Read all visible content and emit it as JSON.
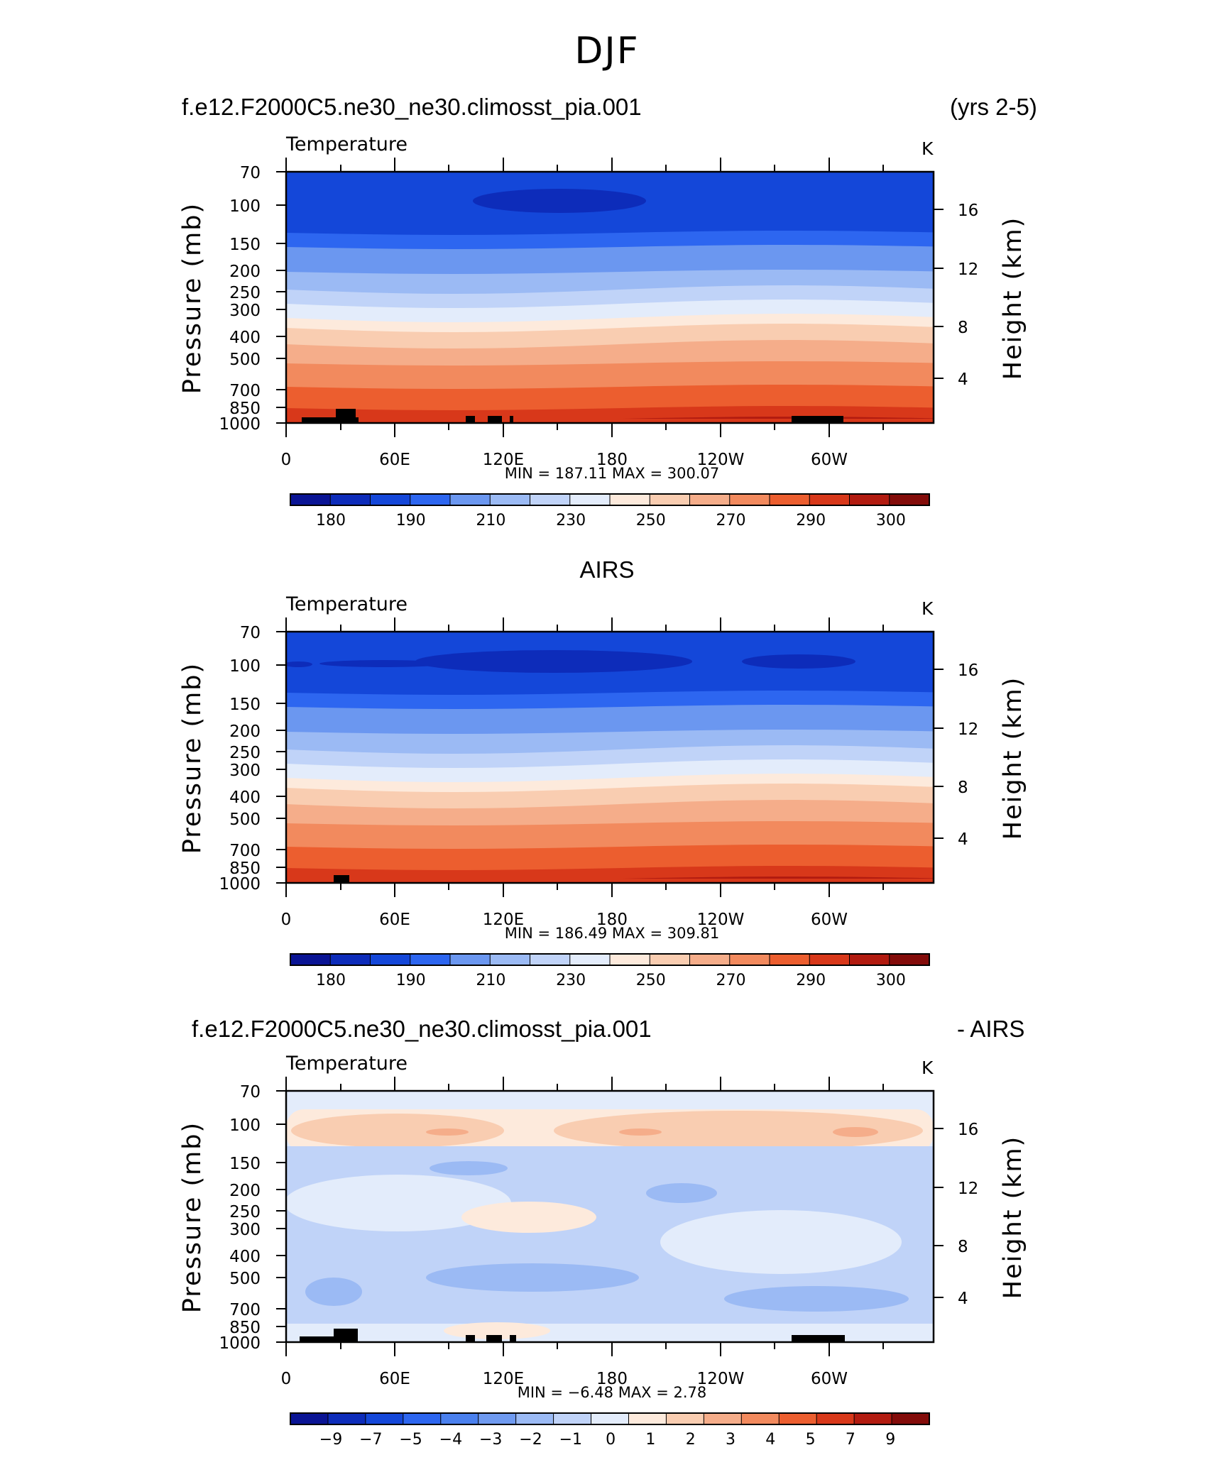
{
  "title": "DJF",
  "headers": {
    "p1_left": "f.e12.F2000C5.ne30_ne30.climosst_pia.001",
    "p1_right": "(yrs 2-5)",
    "p2_center": "AIRS",
    "p3_left": "f.e12.F2000C5.ne30_ne30.climosst_pia.001",
    "p3_right": "- AIRS"
  },
  "colors": {
    "temp_scale": [
      "#0a1494",
      "#0d2cba",
      "#1447d9",
      "#2d66f0",
      "#6b97f0",
      "#9bbaf4",
      "#c0d3f8",
      "#e3ecfb",
      "#fdeadc",
      "#f9cdb1",
      "#f5ad8a",
      "#f28a5e",
      "#ec5e2f",
      "#d8381a",
      "#b21b10",
      "#830c0a"
    ],
    "diff_scale": [
      "#0a1494",
      "#0d2cba",
      "#1447d9",
      "#2d66f0",
      "#4a80ee",
      "#6f9af0",
      "#9bbaf4",
      "#c0d3f8",
      "#e3ecfb",
      "#fdeadc",
      "#f9cdb1",
      "#f5ad8a",
      "#f28a5e",
      "#ec5e2f",
      "#d8381a",
      "#b21b10",
      "#830c0a"
    ]
  },
  "chart_data": [
    {
      "type": "heatmap",
      "subtitle_left": "Temperature",
      "units": "K",
      "ylabel": "Pressure (mb)",
      "ylabel_right": "Height (km)",
      "y_ticks": [
        "70",
        "100",
        "150",
        "200",
        "250",
        "300",
        "400",
        "500",
        "700",
        "850",
        "1000"
      ],
      "y_ticks_right": [
        "16",
        "12",
        "8",
        "4"
      ],
      "x_ticks": [
        "0",
        "60E",
        "120E",
        "180",
        "120W",
        "60W"
      ],
      "stats": "MIN = 187.11   MAX = 300.07",
      "colorbar_labels": [
        "180",
        "190",
        "210",
        "230",
        "250",
        "270",
        "290",
        "300"
      ],
      "profile_levels_mb": [
        70,
        100,
        150,
        200,
        250,
        300,
        400,
        500,
        700,
        850,
        1000
      ],
      "profile_values_K": [
        199,
        192,
        207,
        215,
        225,
        240,
        255,
        267,
        281,
        288,
        294
      ]
    },
    {
      "type": "heatmap",
      "subtitle_left": "Temperature",
      "units": "K",
      "ylabel": "Pressure (mb)",
      "ylabel_right": "Height (km)",
      "y_ticks": [
        "70",
        "100",
        "150",
        "200",
        "250",
        "300",
        "400",
        "500",
        "700",
        "850",
        "1000"
      ],
      "y_ticks_right": [
        "16",
        "12",
        "8",
        "4"
      ],
      "x_ticks": [
        "0",
        "60E",
        "120E",
        "180",
        "120W",
        "60W"
      ],
      "stats": "MIN = 186.49   MAX = 309.81",
      "colorbar_labels": [
        "180",
        "190",
        "210",
        "230",
        "250",
        "270",
        "290",
        "300"
      ],
      "profile_levels_mb": [
        70,
        100,
        150,
        200,
        250,
        300,
        400,
        500,
        700,
        850,
        1000
      ],
      "profile_values_K": [
        198,
        190,
        207,
        216,
        226,
        241,
        256,
        268,
        282,
        289,
        296
      ]
    },
    {
      "type": "heatmap",
      "subtitle_left": "Temperature",
      "units": "K",
      "ylabel": "Pressure (mb)",
      "ylabel_right": "Height (km)",
      "y_ticks": [
        "70",
        "100",
        "150",
        "200",
        "250",
        "300",
        "400",
        "500",
        "700",
        "850",
        "1000"
      ],
      "y_ticks_right": [
        "16",
        "12",
        "8",
        "4"
      ],
      "x_ticks": [
        "0",
        "60E",
        "120E",
        "180",
        "120W",
        "60W"
      ],
      "stats": "MIN =   −6.48   MAX =     2.78",
      "colorbar_labels": [
        "−9",
        "−7",
        "−5",
        "−4",
        "−3",
        "−2",
        "−1",
        "0",
        "1",
        "2",
        "3",
        "4",
        "5",
        "7",
        "9"
      ]
    }
  ]
}
